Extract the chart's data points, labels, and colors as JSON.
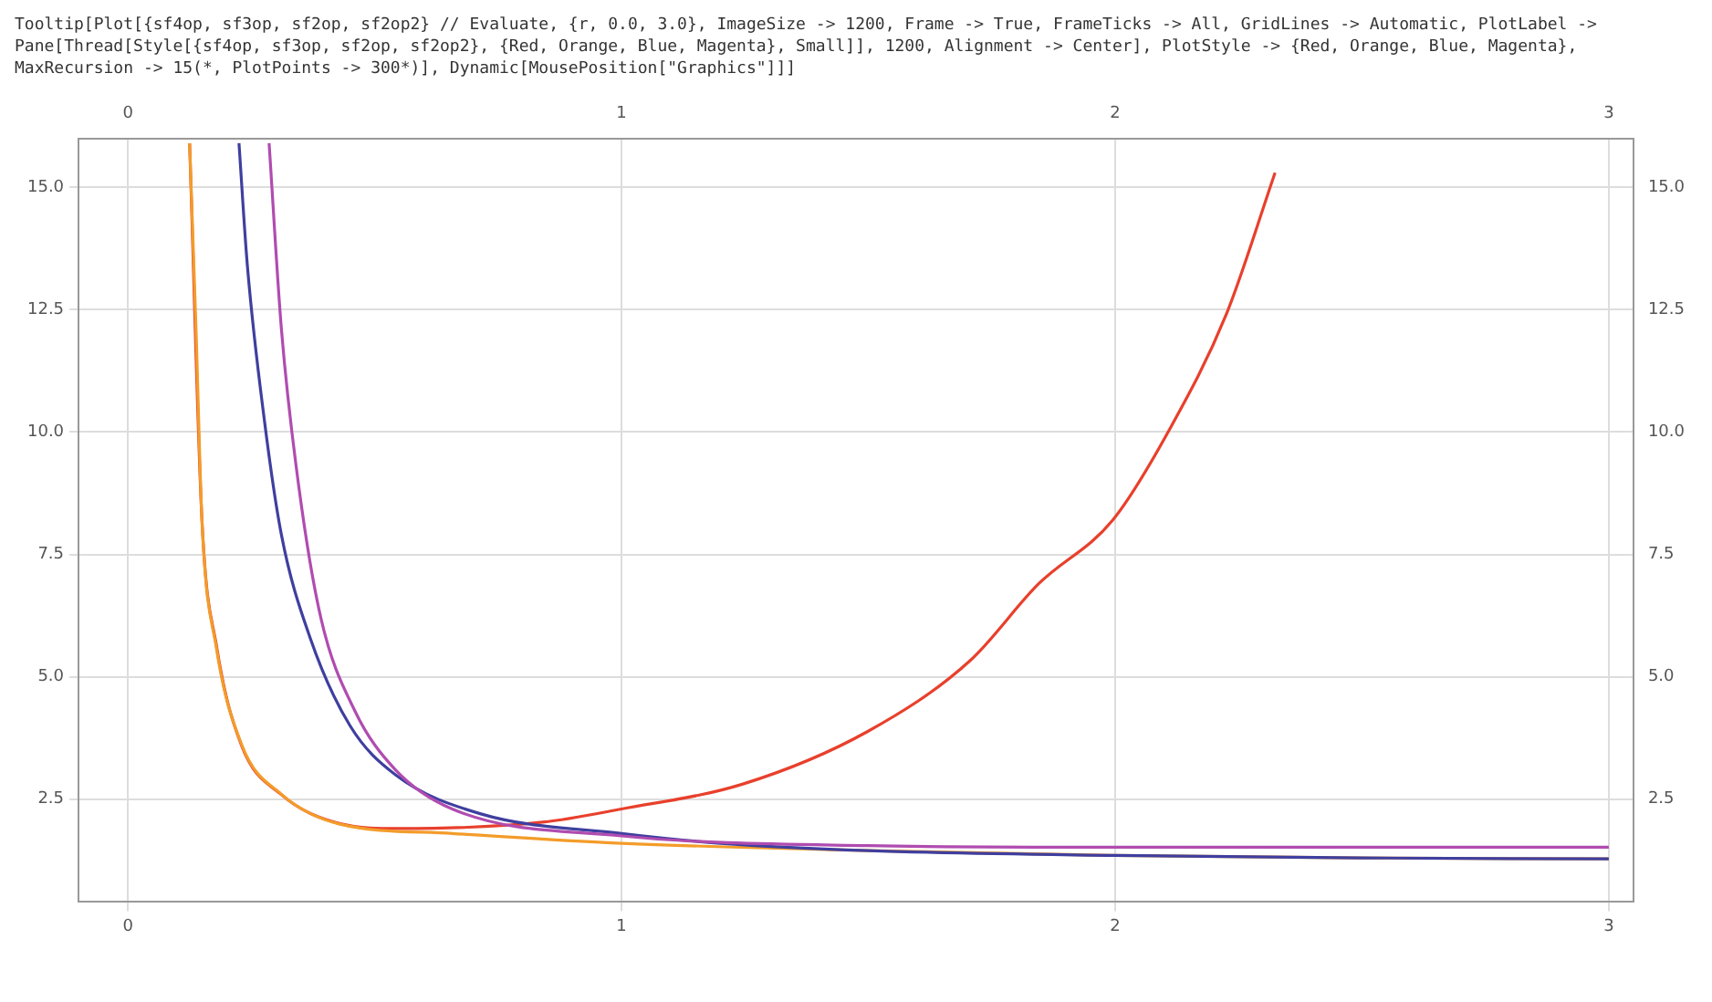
{
  "chart_data": {
    "type": "line",
    "annotations": [
      "Tooltip[Plot[{sf4op, sf3op, sf2op, sf2op2} // Evaluate, {r, 0.0, 3.0}, ImageSize -> 1200, Frame -> True, FrameTicks -> All, GridLines -> Automatic, PlotLabel -> Pane[Thread[Style[{sf4op, sf3op, sf2op, sf2op2}, {Red, Orange, Blue, Magenta}, Small]], 1200, Alignment -> Center], PlotStyle -> {Red, Orange, Blue, Magenta}, MaxRecursion -> 15(*, PlotPoints -> 300*)], Dynamic[MousePosition[\"Graphics\"]]]"
    ],
    "series": [
      {
        "color": "#e8402c",
        "x": [
          0.125,
          0.15,
          0.18,
          0.23,
          0.31,
          0.43,
          0.55,
          0.84,
          1.0,
          1.246,
          1.498,
          1.706,
          1.845,
          1.995,
          2.11,
          2.225,
          2.324
        ],
        "values": [
          15.9,
          8.2,
          5.6,
          3.6,
          2.6,
          2.0,
          1.9,
          2.03,
          2.3,
          2.81,
          3.88,
          5.33,
          6.9,
          8.2,
          10.05,
          12.4,
          15.3
        ]
      },
      {
        "color": "#f39c2a",
        "x": [
          0.125,
          0.138,
          0.15,
          0.179,
          0.231,
          0.311,
          0.426,
          0.657,
          1.0,
          1.5,
          2.0,
          2.5,
          3.0
        ],
        "values": [
          15.9,
          12.1,
          8.2,
          5.6,
          3.6,
          2.6,
          2.0,
          1.8,
          1.6,
          1.45,
          1.35,
          1.3,
          1.28
        ]
      },
      {
        "color": "#3f3fa0",
        "x": [
          0.225,
          0.242,
          0.277,
          0.311,
          0.369,
          0.45,
          0.542,
          0.715,
          1.0,
          1.2,
          1.5,
          2.0,
          2.5,
          3.0
        ],
        "values": [
          15.9,
          13.4,
          10.2,
          7.9,
          5.8,
          4.0,
          3.0,
          2.2,
          1.8,
          1.6,
          1.45,
          1.35,
          1.3,
          1.28
        ]
      },
      {
        "color": "#b04cb0",
        "x": [
          0.286,
          0.311,
          0.346,
          0.391,
          0.46,
          0.542,
          0.657,
          1.0,
          1.5,
          2.0,
          2.5,
          3.0
        ],
        "values": [
          15.9,
          12.1,
          8.9,
          6.2,
          4.3,
          3.1,
          2.3,
          1.75,
          1.55,
          1.52,
          1.52,
          1.52
        ]
      }
    ],
    "xlim": [
      -0.1,
      3.05
    ],
    "xticks": [
      0,
      1,
      2,
      3
    ],
    "x2lim": [
      -0.1,
      3.05
    ],
    "x2ticks": [
      0,
      1,
      2,
      3
    ],
    "ylim": [
      0.4,
      16
    ],
    "yticks": [
      2.5,
      {
        "value": 5,
        "label": "5.0"
      },
      7.5,
      {
        "value": 10,
        "label": "10.0"
      },
      12.5,
      {
        "value": 15,
        "label": "15.0"
      }
    ],
    "y2lim": [
      0.4,
      16
    ],
    "y2ticks": [
      2.5,
      {
        "value": 5,
        "label": "5.0"
      },
      7.5,
      {
        "value": 10,
        "label": "10.0"
      },
      12.5,
      {
        "value": 15,
        "label": "15.0"
      }
    ],
    "grid": true,
    "legend": false,
    "marker": "none",
    "line_style": "solid"
  }
}
